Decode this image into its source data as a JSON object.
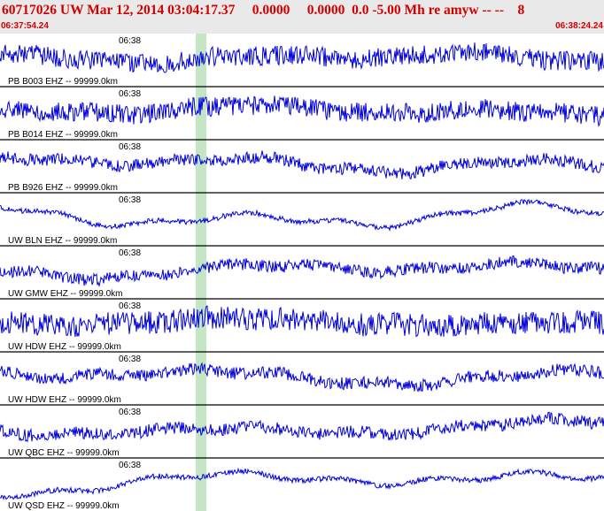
{
  "header": {
    "title": "60717026 UW Mar 12, 2014 03:04:17.37     0.0000     0.0000  0.0 -5.00 Mh re amyw -- --    8",
    "time_start": "06:37:54.24",
    "time_end": "06:38:24.24"
  },
  "colors": {
    "trace": "#0000dd",
    "header_text": "#d40000",
    "highlight": "#c4e6c4",
    "divider": "#000000",
    "header_bg": "#e9e9e9"
  },
  "traces": [
    {
      "station": "PB B003 EHZ -- 99999.0km",
      "minute_label": "06:38",
      "style": "noisy"
    },
    {
      "station": "PB B014 EHZ -- 99999.0km",
      "minute_label": "06:38",
      "style": "noisy"
    },
    {
      "station": "PB B926 EHZ -- 99999.0km",
      "minute_label": "06:38",
      "style": "medium"
    },
    {
      "station": "UW BLN EHZ -- 99999.0km",
      "minute_label": "06:38",
      "style": "smooth"
    },
    {
      "station": "UW GMW EHZ -- 99999.0km",
      "minute_label": "06:38",
      "style": "medium"
    },
    {
      "station": "UW HDW EHZ -- 99999.0km",
      "minute_label": "06:38",
      "style": "spiky"
    },
    {
      "station": "UW HDW EHZ -- 99999.0km",
      "minute_label": "06:38",
      "style": "medium"
    },
    {
      "station": "UW QBC EHZ -- 99999.0km",
      "minute_label": "06:38",
      "style": "medium"
    },
    {
      "station": "UW QSD EHZ -- 99999.0km",
      "minute_label": "06:38",
      "style": "smooth"
    }
  ]
}
